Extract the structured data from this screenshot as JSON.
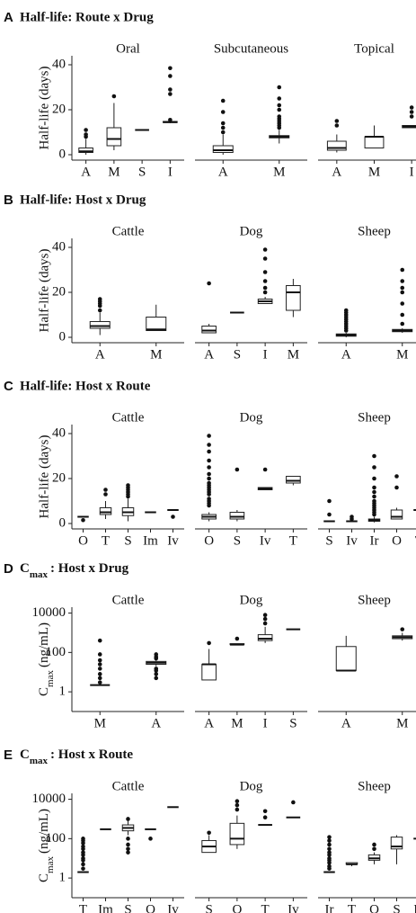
{
  "chart_data": [
    {
      "type": "box",
      "label": "A",
      "title": "Half-life: Route x Drug",
      "ylabel": "Half-life (days)",
      "log": false,
      "ylim": [
        -2.4,
        44
      ],
      "yticks": [
        0,
        20,
        40
      ],
      "facets": [
        {
          "title": "Oral",
          "categories": [
            "A",
            "M",
            "S",
            "I"
          ],
          "boxes": [
            {
              "low": 0,
              "q1": 1,
              "median": 1.5,
              "q3": 3,
              "high": 7,
              "outliers": [
                8,
                9,
                11
              ]
            },
            {
              "low": 2,
              "q1": 4,
              "median": 7,
              "q3": 12,
              "high": 23,
              "outliers": [
                26
              ]
            },
            {
              "low": 11,
              "q1": 11,
              "median": 11,
              "q3": 11,
              "high": 11,
              "outliers": []
            },
            {
              "low": 14,
              "q1": 14.3,
              "median": 14.5,
              "q3": 14.8,
              "high": 15,
              "outliers": [
                15.5,
                27,
                29,
                35,
                38.5
              ]
            }
          ]
        },
        {
          "title": "Subcutaneous",
          "categories": [
            "A",
            "M"
          ],
          "boxes": [
            {
              "low": 0,
              "q1": 1,
              "median": 2,
              "q3": 4,
              "high": 9,
              "outliers": [
                10,
                12,
                14,
                19,
                24
              ]
            },
            {
              "low": 5,
              "q1": 7.5,
              "median": 8,
              "q3": 8.5,
              "high": 11,
              "outliers": [
                12,
                13,
                14,
                15,
                16,
                17,
                20,
                22,
                25,
                30
              ]
            }
          ]
        },
        {
          "title": "Topical",
          "categories": [
            "A",
            "M",
            "I"
          ],
          "boxes": [
            {
              "low": 1,
              "q1": 2,
              "median": 3,
              "q3": 6,
              "high": 9,
              "outliers": [
                13,
                15
              ]
            },
            {
              "low": 3,
              "q1": 3,
              "median": 8,
              "q3": 8,
              "high": 13,
              "outliers": []
            },
            {
              "low": 12,
              "q1": 12,
              "median": 12.5,
              "q3": 13,
              "high": 13,
              "outliers": [
                17,
                19,
                21
              ]
            }
          ]
        }
      ]
    },
    {
      "type": "box",
      "label": "B",
      "title": "Half-life: Host x Drug",
      "ylabel": "Half-life (days)",
      "log": false,
      "ylim": [
        -2.4,
        44
      ],
      "yticks": [
        0,
        20,
        40
      ],
      "facets": [
        {
          "title": "Cattle",
          "categories": [
            "A",
            "M"
          ],
          "boxes": [
            {
              "low": 1,
              "q1": 4,
              "median": 5,
              "q3": 7,
              "high": 11,
              "outliers": [
                12,
                14,
                15,
                16,
                17
              ]
            },
            {
              "low": 3,
              "q1": 3,
              "median": 3.5,
              "q3": 9,
              "high": 14.5,
              "outliers": []
            }
          ]
        },
        {
          "title": "Dog",
          "categories": [
            "A",
            "S",
            "I",
            "M"
          ],
          "boxes": [
            {
              "low": 2,
              "q1": 2,
              "median": 3,
              "q3": 5,
              "high": 6,
              "outliers": [
                24
              ]
            },
            {
              "low": 11,
              "q1": 11,
              "median": 11,
              "q3": 11,
              "high": 11,
              "outliers": []
            },
            {
              "low": 15,
              "q1": 15,
              "median": 16,
              "q3": 17,
              "high": 18,
              "outliers": [
                20,
                22,
                25,
                29,
                35,
                39
              ]
            },
            {
              "low": 9,
              "q1": 12,
              "median": 20,
              "q3": 23,
              "high": 26,
              "outliers": []
            }
          ]
        },
        {
          "title": "Sheep",
          "categories": [
            "A",
            "M"
          ],
          "boxes": [
            {
              "low": 0,
              "q1": 0.5,
              "median": 1,
              "q3": 1.5,
              "high": 2,
              "outliers": [
                3,
                4,
                5,
                6,
                7,
                8,
                9,
                10,
                11,
                12
              ]
            },
            {
              "low": 2,
              "q1": 2.5,
              "median": 3,
              "q3": 3.5,
              "high": 4,
              "outliers": [
                6,
                10,
                15,
                20,
                22,
                25,
                30
              ]
            }
          ]
        }
      ]
    },
    {
      "type": "box",
      "label": "C",
      "title": "Half-life: Host x Route",
      "ylabel": "Half-life (days)",
      "log": false,
      "ylim": [
        -2.4,
        44
      ],
      "yticks": [
        0,
        20,
        40
      ],
      "facets": [
        {
          "title": "Cattle",
          "categories": [
            "O",
            "T",
            "S",
            "Im",
            "Iv"
          ],
          "boxes": [
            {
              "low": 3,
              "q1": 3,
              "median": 3,
              "q3": 3,
              "high": 3,
              "outliers": [
                1.5
              ]
            },
            {
              "low": 2,
              "q1": 4,
              "median": 5,
              "q3": 7,
              "high": 10,
              "outliers": [
                13,
                15
              ]
            },
            {
              "low": 1,
              "q1": 3.5,
              "median": 5,
              "q3": 7,
              "high": 11,
              "outliers": [
                12,
                13,
                14,
                15,
                16,
                17
              ]
            },
            {
              "low": 5,
              "q1": 5,
              "median": 5,
              "q3": 5,
              "high": 5,
              "outliers": []
            },
            {
              "low": 6,
              "q1": 6,
              "median": 6,
              "q3": 6,
              "high": 6,
              "outliers": [
                3
              ]
            }
          ]
        },
        {
          "title": "Dog",
          "categories": [
            "O",
            "S",
            "Iv",
            "T"
          ],
          "boxes": [
            {
              "low": 1,
              "q1": 2,
              "median": 3,
              "q3": 4,
              "high": 5,
              "outliers": [
                8,
                9,
                10,
                11,
                13,
                14,
                15,
                16,
                17,
                18,
                20,
                22,
                25,
                28,
                32,
                35,
                39
              ]
            },
            {
              "low": 1,
              "q1": 2,
              "median": 3,
              "q3": 5,
              "high": 6,
              "outliers": [
                24
              ]
            },
            {
              "low": 15,
              "q1": 15,
              "median": 15.5,
              "q3": 16,
              "high": 16,
              "outliers": [
                24
              ]
            },
            {
              "low": 17,
              "q1": 18,
              "median": 19,
              "q3": 21,
              "high": 21,
              "outliers": []
            }
          ]
        },
        {
          "title": "Sheep",
          "categories": [
            "S",
            "Iv",
            "Ir",
            "O",
            "T"
          ],
          "boxes": [
            {
              "low": 1,
              "q1": 1,
              "median": 1,
              "q3": 1,
              "high": 1,
              "outliers": [
                4,
                10
              ]
            },
            {
              "low": 1,
              "q1": 1,
              "median": 1,
              "q3": 1,
              "high": 1,
              "outliers": [
                2,
                3
              ]
            },
            {
              "low": 0.5,
              "q1": 1,
              "median": 1.5,
              "q3": 2,
              "high": 3,
              "outliers": [
                4,
                5,
                6,
                7,
                8,
                9,
                10,
                12,
                14,
                16,
                20,
                25,
                30
              ]
            },
            {
              "low": 2,
              "q1": 2,
              "median": 3,
              "q3": 6,
              "high": 7,
              "outliers": [
                16,
                21
              ]
            },
            {
              "low": 6,
              "q1": 6,
              "median": 6,
              "q3": 6,
              "high": 6,
              "outliers": [
                9,
                12
              ]
            }
          ]
        }
      ]
    },
    {
      "type": "box",
      "label": "D",
      "title": [
        {
          "text": "C"
        },
        {
          "text": "max",
          "sub": true
        },
        {
          "text": ": Host x Drug"
        }
      ],
      "ylabel": [
        {
          "text": "C"
        },
        {
          "text": "max",
          "sub": true
        },
        {
          "text": "(ng/mL)"
        }
      ],
      "log": true,
      "ylim": [
        0.1,
        20000
      ],
      "yticks": [
        1,
        100,
        10000
      ],
      "facets": [
        {
          "title": "Cattle",
          "categories": [
            "M",
            "A"
          ],
          "boxes": [
            {
              "low": 2.2,
              "q1": 2.2,
              "median": 2.2,
              "q3": 2.2,
              "high": 2.2,
              "outliers": [
                3,
                5,
                8,
                15,
                25,
                40,
                80,
                400
              ]
            },
            {
              "low": 20,
              "q1": 25,
              "median": 30,
              "q3": 35,
              "high": 45,
              "outliers": [
                5,
                8,
                12,
                15,
                50,
                60,
                80
              ]
            }
          ]
        },
        {
          "title": "Dog",
          "categories": [
            "A",
            "M",
            "I",
            "S"
          ],
          "boxes": [
            {
              "low": 4,
              "q1": 4,
              "median": 25,
              "q3": 25,
              "high": 150,
              "outliers": [
                300
              ]
            },
            {
              "low": 250,
              "q1": 250,
              "median": 250,
              "q3": 280,
              "high": 280,
              "outliers": [
                500
              ]
            },
            {
              "low": 300,
              "q1": 400,
              "median": 500,
              "q3": 800,
              "high": 2000,
              "outliers": [
                3000,
                5000,
                8000
              ]
            },
            {
              "low": 1500,
              "q1": 1500,
              "median": 1500,
              "q3": 1500,
              "high": 1500,
              "outliers": []
            }
          ]
        },
        {
          "title": "Sheep",
          "categories": [
            "A",
            "M"
          ],
          "boxes": [
            {
              "low": 12,
              "q1": 12,
              "median": 12,
              "q3": 200,
              "high": 700,
              "outliers": []
            },
            {
              "low": 400,
              "q1": 500,
              "median": 600,
              "q3": 700,
              "high": 1000,
              "outliers": [
                1500
              ]
            }
          ]
        }
      ]
    },
    {
      "type": "box",
      "label": "E",
      "title": [
        {
          "text": "C"
        },
        {
          "text": "max",
          "sub": true
        },
        {
          "text": ": Host x Route"
        }
      ],
      "ylabel": [
        {
          "text": "C"
        },
        {
          "text": "max",
          "sub": true
        },
        {
          "text": "(ng/mL)"
        }
      ],
      "log": true,
      "ylim": [
        0.1,
        20000
      ],
      "yticks": [
        1,
        100,
        10000
      ],
      "facets": [
        {
          "title": "Cattle",
          "categories": [
            "T",
            "Im",
            "S",
            "O",
            "Iv"
          ],
          "boxes": [
            {
              "low": 2,
              "q1": 2,
              "median": 2,
              "q3": 2,
              "high": 2,
              "outliers": [
                3,
                5,
                8,
                10,
                15,
                20,
                30,
                40,
                60,
                80,
                100
              ]
            },
            {
              "low": 300,
              "q1": 300,
              "median": 300,
              "q3": 300,
              "high": 300,
              "outliers": []
            },
            {
              "low": 150,
              "q1": 250,
              "median": 350,
              "q3": 500,
              "high": 800,
              "outliers": [
                20,
                30,
                50,
                100,
                1000
              ]
            },
            {
              "low": 300,
              "q1": 300,
              "median": 300,
              "q3": 300,
              "high": 300,
              "outliers": [
                100
              ]
            },
            {
              "low": 4000,
              "q1": 4000,
              "median": 4000,
              "q3": 4000,
              "high": 4000,
              "outliers": []
            }
          ]
        },
        {
          "title": "Dog",
          "categories": [
            "S",
            "O",
            "T",
            "Iv"
          ],
          "boxes": [
            {
              "low": 20,
              "q1": 20,
              "median": 40,
              "q3": 80,
              "high": 150,
              "outliers": [
                200
              ]
            },
            {
              "low": 30,
              "q1": 50,
              "median": 100,
              "q3": 600,
              "high": 1500,
              "outliers": [
                3000,
                5000,
                8000
              ]
            },
            {
              "low": 500,
              "q1": 500,
              "median": 500,
              "q3": 500,
              "high": 500,
              "outliers": [
                1200,
                2500
              ]
            },
            {
              "low": 1200,
              "q1": 1200,
              "median": 1200,
              "q3": 1200,
              "high": 1200,
              "outliers": [
                7000
              ]
            }
          ]
        },
        {
          "title": "Sheep",
          "categories": [
            "Ir",
            "T",
            "O",
            "S",
            "Iv"
          ],
          "boxes": [
            {
              "low": 2,
              "q1": 2,
              "median": 2,
              "q3": 2,
              "high": 2,
              "outliers": [
                3,
                4,
                6,
                8,
                10,
                15,
                20,
                30,
                50,
                80,
                120
              ]
            },
            {
              "low": 4,
              "q1": 5,
              "median": 5,
              "q3": 6,
              "high": 6,
              "outliers": []
            },
            {
              "low": 5,
              "q1": 8,
              "median": 10,
              "q3": 15,
              "high": 20,
              "outliers": [
                30,
                50
              ]
            },
            {
              "low": 5,
              "q1": 30,
              "median": 40,
              "q3": 120,
              "high": 150,
              "outliers": []
            },
            {
              "low": 100,
              "q1": 100,
              "median": 100,
              "q3": 100,
              "high": 100,
              "outliers": [
                200
              ]
            }
          ]
        }
      ]
    }
  ]
}
